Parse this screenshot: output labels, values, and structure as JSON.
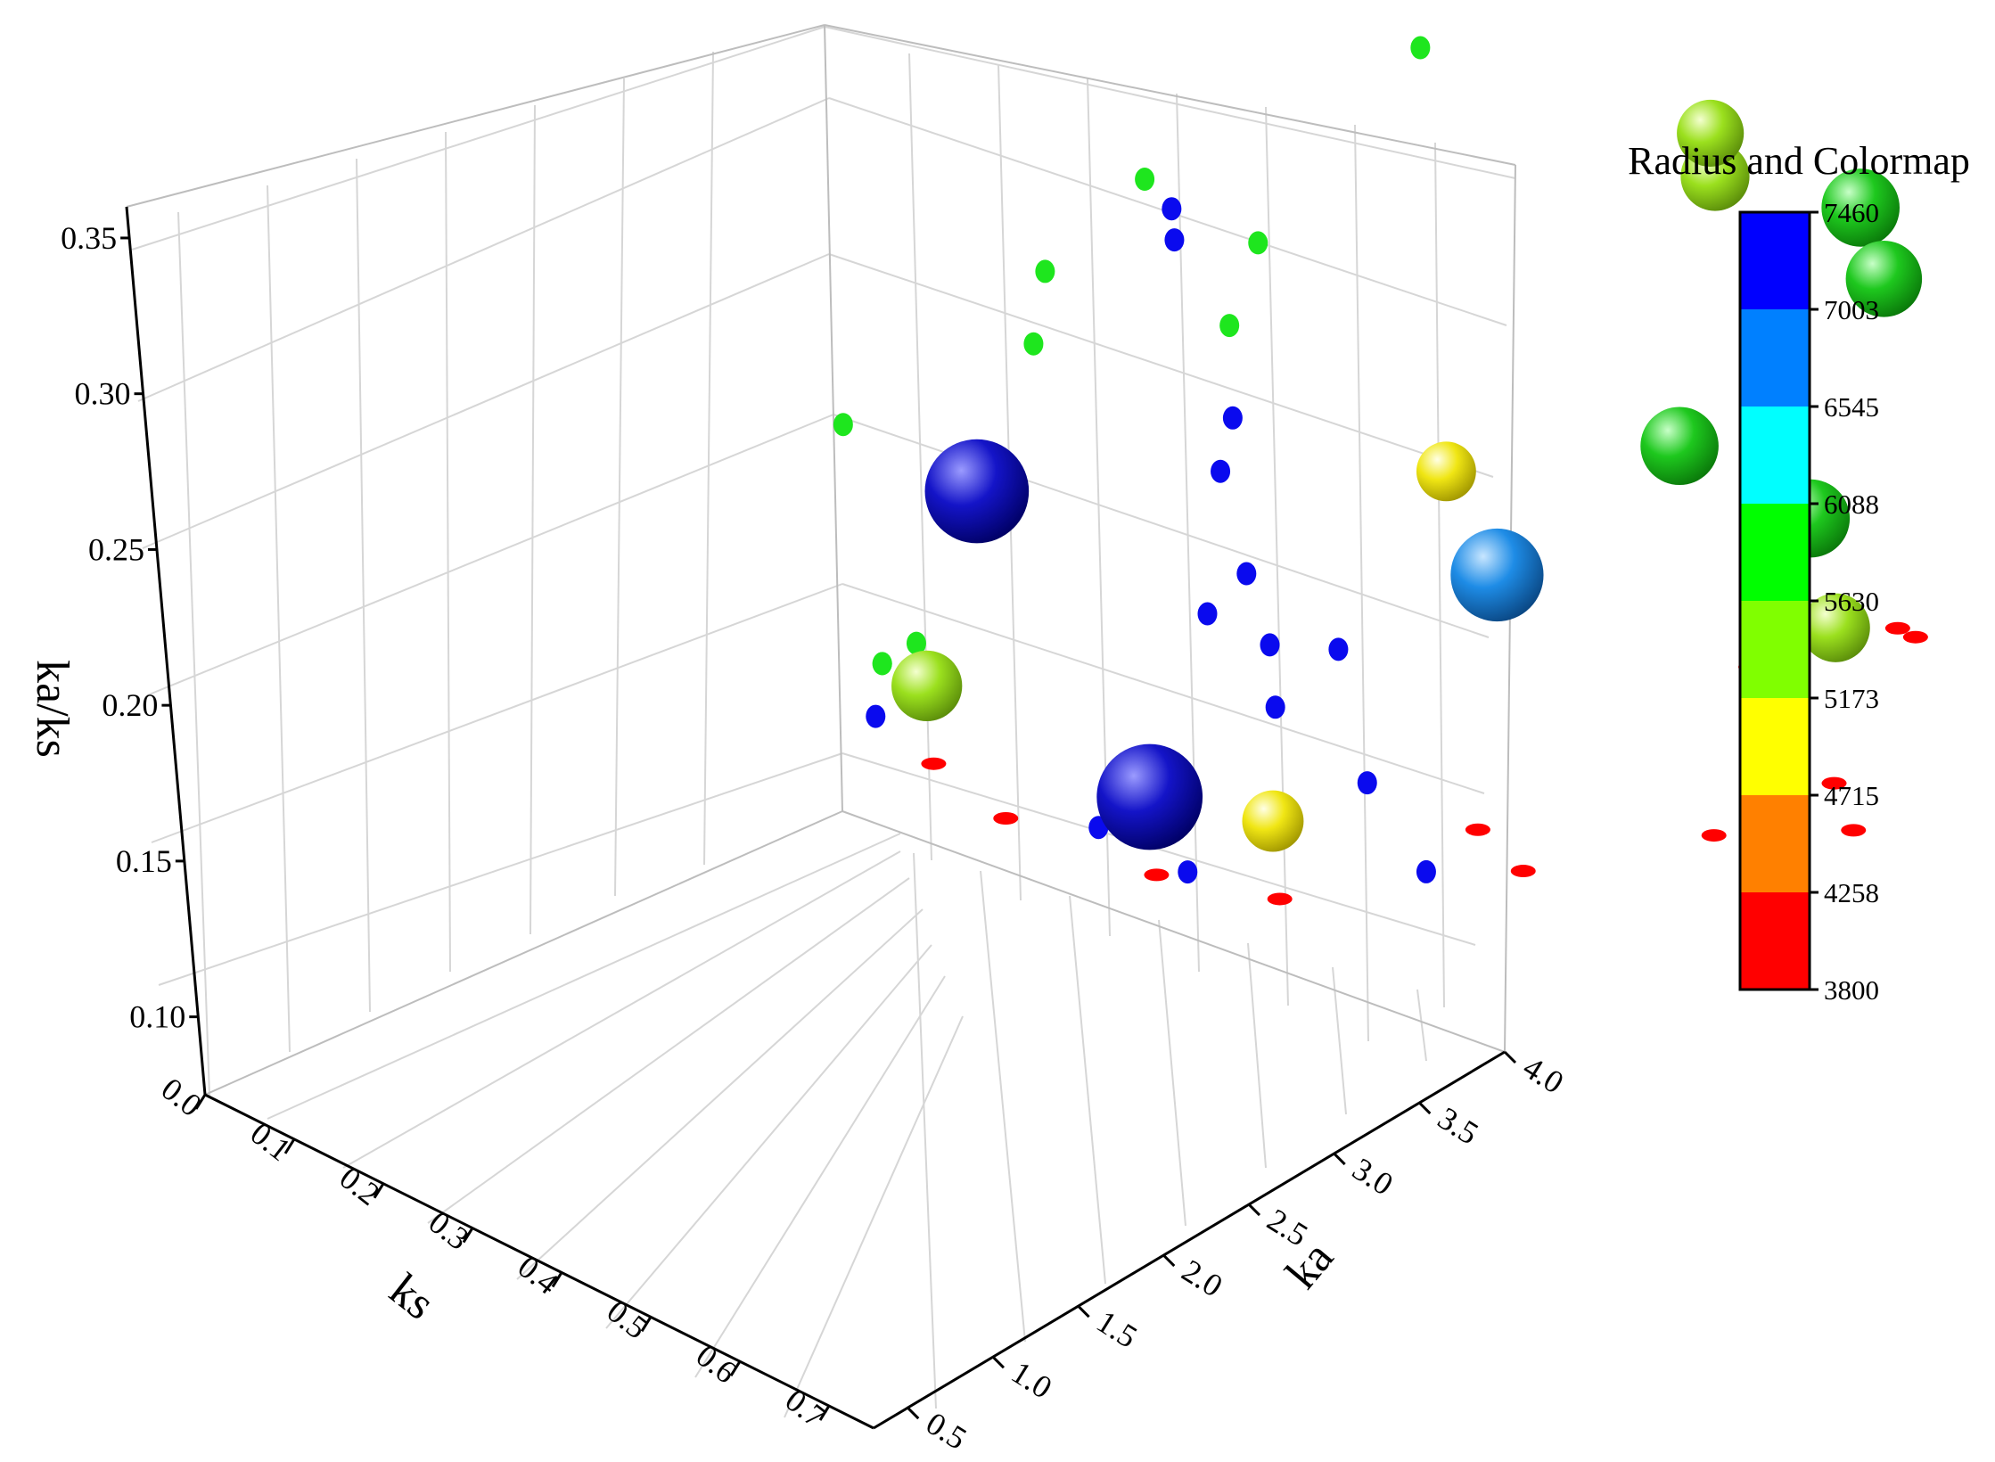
{
  "chart_data": {
    "type": "scatter",
    "title": "",
    "xlabel": "ks",
    "ylabel": "ka",
    "zlabel": "ka/ks",
    "xlim": [
      0.0,
      0.75
    ],
    "ylim": [
      0.3,
      4.0
    ],
    "zlim": [
      0.075,
      0.36
    ],
    "x_ticks": [
      "0.0",
      "0.1",
      "0.2",
      "0.3",
      "0.4",
      "0.5",
      "0.6",
      "0.7"
    ],
    "y_ticks": [
      "0.5",
      "1.0",
      "1.5",
      "2.0",
      "2.5",
      "3.0",
      "3.5",
      "4.0"
    ],
    "z_ticks": [
      "0.10",
      "0.15",
      "0.20",
      "0.25",
      "0.30",
      "0.35"
    ],
    "grid": true,
    "colorbar": {
      "title": "Radius and Colormap",
      "min": 3800,
      "max": 7460,
      "levels": [
        "7460",
        "7003",
        "6545",
        "6088",
        "5630",
        "5173",
        "4715",
        "4258",
        "3800"
      ],
      "colors": [
        "#0000ff",
        "#0080ff",
        "#00ffff",
        "#00ff00",
        "#80ff00",
        "#ffff00",
        "#ff8000",
        "#ff0000"
      ]
    },
    "points": [
      {
        "ks": 0.45,
        "ka": 3.3,
        "ka_ks": 0.31,
        "value": 3850
      },
      {
        "ks": 0.45,
        "ka": 3.5,
        "ka_ks": 0.32,
        "value": 5800
      },
      {
        "ks": 0.5,
        "ka": 3.1,
        "ka_ks": 0.26,
        "value": 5300
      },
      {
        "ks": 0.48,
        "ka": 3.2,
        "ka_ks": 0.24,
        "value": 5400
      },
      {
        "ks": 0.6,
        "ka": 2.3,
        "ka_ks": 0.2,
        "value": 5900
      },
      {
        "ks": 0.62,
        "ka": 2.9,
        "ka_ks": 0.16,
        "value": 5900
      },
      {
        "ks": 0.68,
        "ka": 2.7,
        "ka_ks": 0.14,
        "value": 5400
      },
      {
        "ks": 0.52,
        "ka": 3.9,
        "ka_ks": 0.19,
        "value": 5800
      },
      {
        "ks": 0.5,
        "ka": 3.9,
        "ka_ks": 0.21,
        "value": 5900
      },
      {
        "ks": 0.45,
        "ka": 1.7,
        "ka_ks": 0.19,
        "value": 4900
      },
      {
        "ks": 0.52,
        "ka": 1.6,
        "ka_ks": 0.17,
        "value": 6700
      },
      {
        "ks": 0.15,
        "ka": 0.5,
        "ka_ks": 0.18,
        "value": 7300
      },
      {
        "ks": 0.3,
        "ka": 0.6,
        "ka_ks": 0.1,
        "value": 7400
      },
      {
        "ks": 0.4,
        "ka": 0.8,
        "ka_ks": 0.1,
        "value": 5000
      },
      {
        "ks": 0.05,
        "ka": 0.6,
        "ka_ks": 0.1,
        "value": 5500
      }
    ]
  }
}
